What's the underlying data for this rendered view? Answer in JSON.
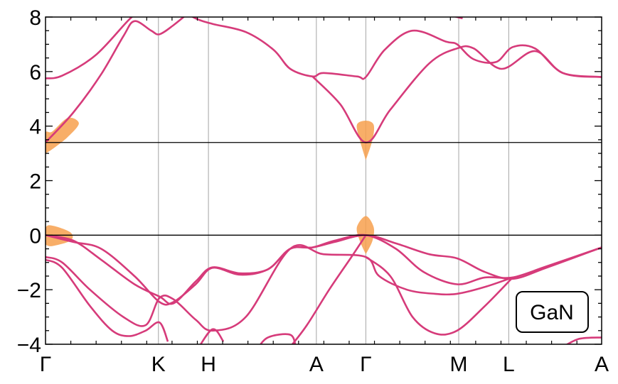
{
  "chart_data": {
    "type": "line",
    "title": "",
    "xlabel": "",
    "ylabel": "",
    "ylim": [
      -4,
      8
    ],
    "yticks": [
      "8",
      "6",
      "4",
      "2",
      "0",
      "−2",
      "−4"
    ],
    "x_labels": [
      "Γ",
      "K",
      "H",
      "A",
      "Γ",
      "M",
      "L",
      "A"
    ],
    "hlines": [
      3.4,
      0
    ],
    "annotation": "GaN",
    "grid": "vertical at high-symmetry points",
    "colors": {
      "bands": "#d63b7a",
      "orange": "#f7a04e",
      "vline": "#b3b3b3"
    },
    "bands": [
      [
        [
          0,
          5.75
        ],
        [
          0.03,
          5.85
        ],
        [
          0.09,
          6.6
        ],
        [
          0.15,
          7.9
        ],
        [
          0.18,
          8.4
        ]
      ],
      [
        [
          0,
          3.4
        ],
        [
          0.05,
          4.5
        ],
        [
          0.1,
          5.9
        ],
        [
          0.14,
          7.3
        ],
        [
          0.16,
          7.85
        ],
        [
          0.19,
          7.5
        ],
        [
          0.205,
          7.37
        ],
        [
          0.23,
          7.7
        ],
        [
          0.26,
          8.2
        ]
      ],
      [
        [
          0.24,
          8.3
        ],
        [
          0.27,
          7.95
        ],
        [
          0.3,
          7.75
        ],
        [
          0.36,
          7.45
        ],
        [
          0.41,
          6.8
        ],
        [
          0.44,
          6.1
        ],
        [
          0.48,
          5.82
        ],
        [
          0.5,
          5.95
        ],
        [
          0.56,
          5.82
        ],
        [
          0.576,
          5.8
        ],
        [
          0.61,
          6.8
        ],
        [
          0.66,
          7.5
        ],
        [
          0.72,
          7.1
        ],
        [
          0.74,
          7.0
        ],
        [
          0.77,
          6.45
        ],
        [
          0.81,
          6.35
        ],
        [
          0.84,
          6.9
        ],
        [
          0.88,
          6.85
        ],
        [
          0.93,
          5.95
        ],
        [
          1.0,
          5.8
        ]
      ],
      [
        [
          0.48,
          5.82
        ],
        [
          0.53,
          4.8
        ],
        [
          0.576,
          3.4
        ],
        [
          0.62,
          4.6
        ],
        [
          0.69,
          6.3
        ],
        [
          0.74,
          6.85
        ],
        [
          0.77,
          6.85
        ],
        [
          0.82,
          6.1
        ],
        [
          0.88,
          6.75
        ],
        [
          0.93,
          5.95
        ],
        [
          1.0,
          5.8
        ]
      ],
      [
        [
          0,
          0
        ],
        [
          0.05,
          -0.2
        ],
        [
          0.1,
          -0.9
        ],
        [
          0.16,
          -1.8
        ],
        [
          0.205,
          -2.25
        ],
        [
          0.23,
          -2.5
        ],
        [
          0.27,
          -1.7
        ],
        [
          0.3,
          -1.18
        ],
        [
          0.35,
          -1.4
        ],
        [
          0.4,
          -1.25
        ],
        [
          0.44,
          -0.5
        ],
        [
          0.48,
          -0.45
        ],
        [
          0.52,
          -0.2
        ],
        [
          0.576,
          0
        ],
        [
          0.63,
          -0.5
        ],
        [
          0.68,
          -1.35
        ],
        [
          0.74,
          -1.8
        ],
        [
          0.79,
          -1.55
        ],
        [
          0.84,
          -1.55
        ],
        [
          0.9,
          -1.15
        ],
        [
          1.0,
          -0.45
        ]
      ],
      [
        [
          0,
          0
        ],
        [
          0.05,
          -0.25
        ],
        [
          0.1,
          -0.5
        ],
        [
          0.16,
          -1.5
        ],
        [
          0.205,
          -2.45
        ],
        [
          0.23,
          -2.45
        ],
        [
          0.27,
          -1.8
        ],
        [
          0.3,
          -1.2
        ],
        [
          0.35,
          -1.45
        ],
        [
          0.4,
          -1.25
        ],
        [
          0.44,
          -0.5
        ],
        [
          0.48,
          -0.45
        ],
        [
          0.52,
          -0.25
        ],
        [
          0.576,
          0
        ],
        [
          0.63,
          -0.3
        ],
        [
          0.69,
          -0.7
        ],
        [
          0.74,
          -0.85
        ],
        [
          0.79,
          -1.35
        ],
        [
          0.84,
          -1.6
        ],
        [
          0.9,
          -1.2
        ],
        [
          1.0,
          -0.45
        ]
      ],
      [
        [
          0,
          -0.8
        ],
        [
          0.03,
          -1.0
        ],
        [
          0.08,
          -2.0
        ],
        [
          0.14,
          -3.0
        ],
        [
          0.18,
          -3.3
        ],
        [
          0.205,
          -2.3
        ],
        [
          0.23,
          -2.35
        ],
        [
          0.27,
          -3.1
        ],
        [
          0.3,
          -3.5
        ],
        [
          0.36,
          -3.0
        ],
        [
          0.44,
          -0.5
        ],
        [
          0.5,
          -0.7
        ],
        [
          0.576,
          -0.8
        ],
        [
          0.6,
          -1.5
        ],
        [
          0.65,
          -2.0
        ],
        [
          0.7,
          -2.15
        ],
        [
          0.74,
          -2.15
        ],
        [
          0.79,
          -1.9
        ],
        [
          0.84,
          -1.55
        ]
      ],
      [
        [
          0,
          -0.9
        ],
        [
          0.03,
          -1.2
        ],
        [
          0.08,
          -2.6
        ],
        [
          0.12,
          -3.5
        ],
        [
          0.15,
          -3.7
        ],
        [
          0.18,
          -3.5
        ],
        [
          0.205,
          -3.2
        ],
        [
          0.22,
          -3.9
        ]
      ],
      [
        [
          0.576,
          -0.8
        ],
        [
          0.62,
          -1.5
        ],
        [
          0.66,
          -3.0
        ],
        [
          0.7,
          -3.6
        ],
        [
          0.74,
          -3.5
        ],
        [
          0.79,
          -2.6
        ],
        [
          0.84,
          -1.55
        ]
      ],
      [
        [
          0.44,
          -4.1
        ],
        [
          0.47,
          -3.3
        ],
        [
          0.51,
          -2.0
        ],
        [
          0.55,
          -0.8
        ],
        [
          0.576,
          0
        ]
      ],
      [
        [
          0.38,
          -4.2
        ],
        [
          0.4,
          -3.75
        ],
        [
          0.44,
          -3.65
        ],
        [
          0.45,
          -4.1
        ]
      ],
      [
        [
          0.27,
          -4.3
        ],
        [
          0.3,
          -3.45
        ],
        [
          0.32,
          -3.9
        ]
      ],
      [
        [
          0.93,
          -4.1
        ],
        [
          0.96,
          -3.8
        ],
        [
          1.0,
          -3.75
        ]
      ],
      [
        [
          0.73,
          8.05
        ],
        [
          0.75,
          7.95
        ]
      ]
    ],
    "orange_regions": [
      [
        [
          0,
          3.0
        ],
        [
          0.012,
          3.15
        ],
        [
          0.04,
          3.6
        ],
        [
          0.06,
          4.1
        ],
        [
          0.04,
          4.3
        ],
        [
          0.012,
          3.8
        ],
        [
          0,
          3.75
        ]
      ],
      [
        [
          0,
          -0.35
        ],
        [
          0.012,
          -0.4
        ],
        [
          0.045,
          -0.2
        ],
        [
          0.045,
          0.1
        ],
        [
          0.012,
          0.35
        ],
        [
          0,
          0.25
        ]
      ],
      [
        [
          0.576,
          2.75
        ],
        [
          0.565,
          3.5
        ],
        [
          0.56,
          4.05
        ],
        [
          0.576,
          4.2
        ],
        [
          0.59,
          4.05
        ],
        [
          0.588,
          3.5
        ]
      ],
      [
        [
          0.576,
          -0.7
        ],
        [
          0.565,
          -0.2
        ],
        [
          0.56,
          0.3
        ],
        [
          0.576,
          0.7
        ],
        [
          0.59,
          0.3
        ],
        [
          0.588,
          -0.2
        ]
      ]
    ]
  }
}
